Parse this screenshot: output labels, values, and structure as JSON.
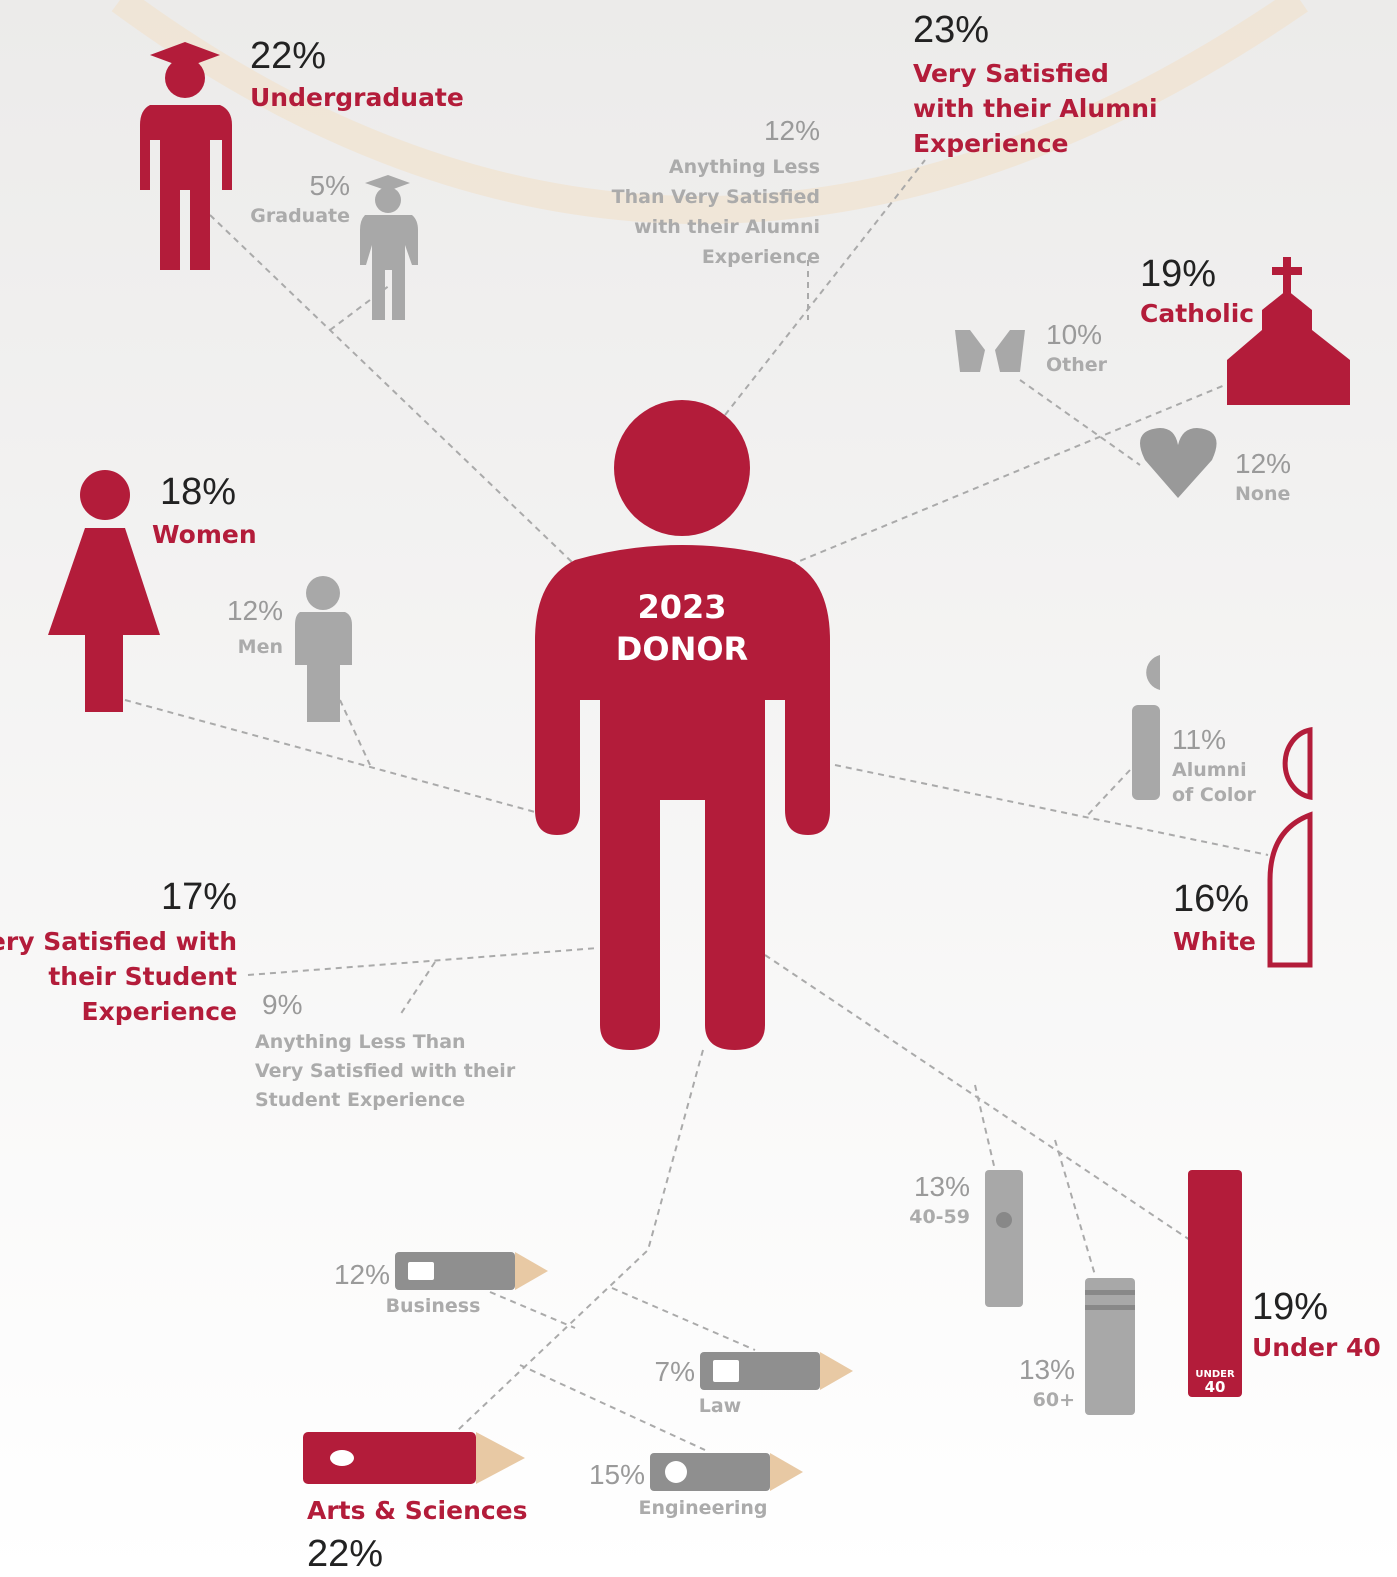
{
  "center": {
    "line1": "2023",
    "line2": "DONOR"
  },
  "items": [
    {
      "pct": "22%",
      "label": [
        "Undergraduate"
      ]
    },
    {
      "pct": "5%",
      "label": [
        "Graduate"
      ]
    },
    {
      "pct": "23%",
      "label": [
        "Very Satisfied",
        "with their Alumni",
        "Experience"
      ]
    },
    {
      "pct": "12%",
      "label": [
        "Anything Less",
        "Than Very Satisfied",
        "with their Alumni",
        "Experience"
      ]
    },
    {
      "pct": "19%",
      "label": [
        "Catholic"
      ]
    },
    {
      "pct": "10%",
      "label": [
        "Other"
      ]
    },
    {
      "pct": "12%",
      "label": [
        "None"
      ]
    },
    {
      "pct": "18%",
      "label": [
        "Women"
      ]
    },
    {
      "pct": "12%",
      "label": [
        "Men"
      ]
    },
    {
      "pct": "11%",
      "label": [
        "Alumni",
        "of Color"
      ]
    },
    {
      "pct": "16%",
      "label": [
        "White"
      ]
    },
    {
      "pct": "17%",
      "label": [
        "Very Satisfied with",
        "their Student",
        "Experience"
      ]
    },
    {
      "pct": "9%",
      "label": [
        "Anything Less  Than",
        "Very Satisfied with their",
        "Student Experience"
      ]
    },
    {
      "pct": "13%",
      "label": [
        "40-59"
      ]
    },
    {
      "pct": "13%",
      "label": [
        "60+"
      ]
    },
    {
      "pct": "19%",
      "label": [
        "Under 40"
      ]
    },
    {
      "pct": "12%",
      "label": [
        "Business"
      ]
    },
    {
      "pct": "7%",
      "label": [
        "Law"
      ]
    },
    {
      "pct": "15%",
      "label": [
        "Engineering"
      ]
    },
    {
      "pct": "22%",
      "label": [
        "Arts & Sciences"
      ]
    }
  ],
  "book_badge": [
    "UNDER",
    "40"
  ]
}
